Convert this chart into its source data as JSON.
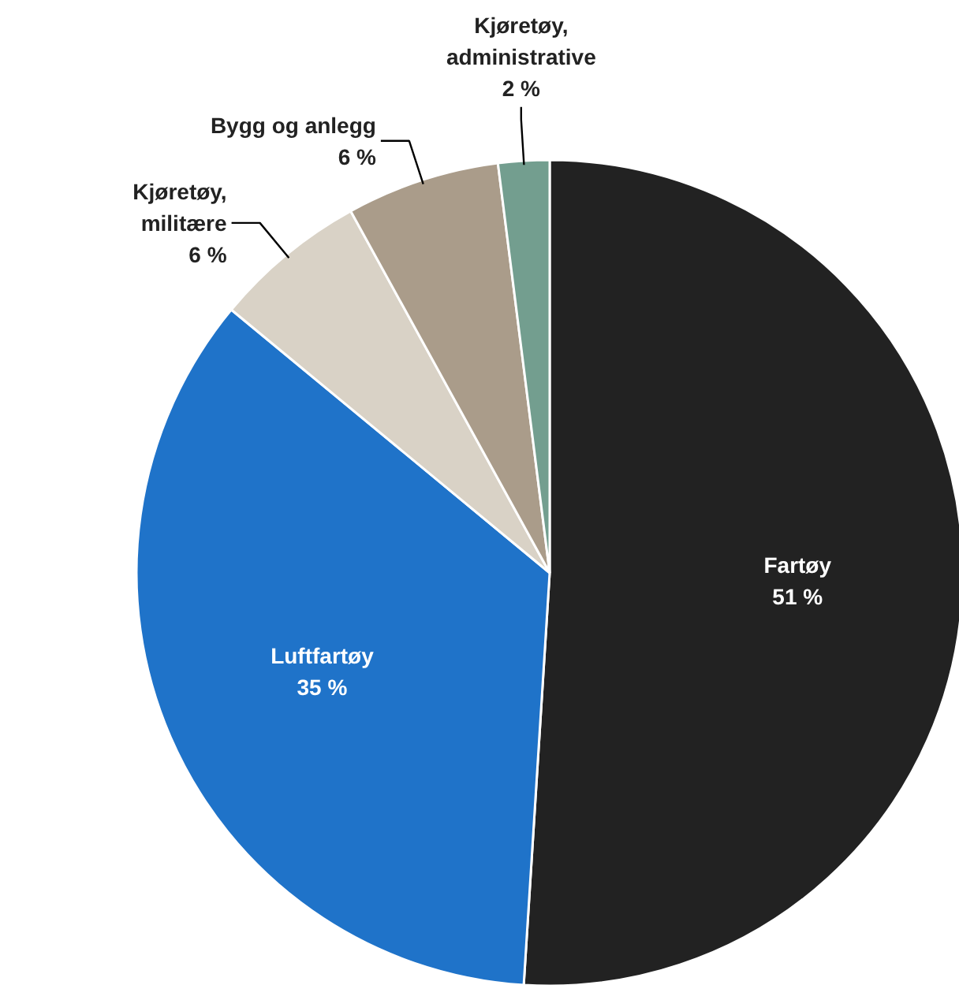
{
  "chart_data": {
    "type": "pie",
    "categories": [
      "Fartøy",
      "Luftfartøy",
      "Kjøretøy, militære",
      "Bygg og anlegg",
      "Kjøretøy, administrative"
    ],
    "values": [
      51,
      35,
      6,
      6,
      2
    ],
    "colors": [
      "#222222",
      "#1f73c9",
      "#d9d2c6",
      "#aa9c8a",
      "#739e8f"
    ],
    "value_labels": [
      "51 %",
      "35 %",
      "6 %",
      "6 %",
      "2 %"
    ]
  }
}
